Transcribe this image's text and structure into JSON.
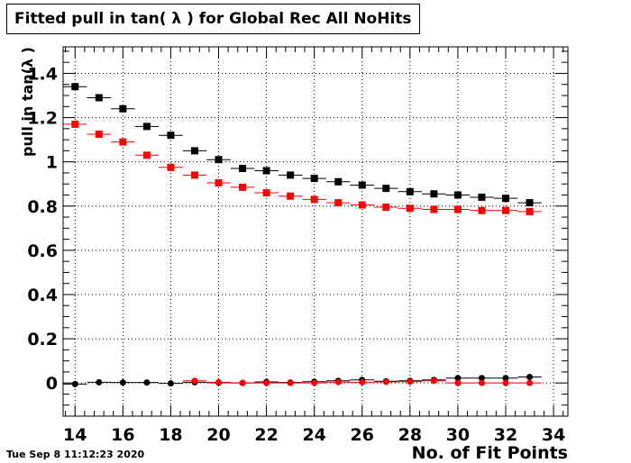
{
  "title": "Fitted pull in tan( λ ) for Global Rec All NoHits",
  "timestamp": "Tue Sep  8 11:12:23 2020",
  "chart_data": {
    "type": "scatter",
    "xlabel": "No. of Fit Points",
    "ylabel": "pull in tan(λ )",
    "xlim": [
      13.5,
      34.6
    ],
    "ylim": [
      -0.15,
      1.52
    ],
    "x_ticks": [
      14,
      16,
      18,
      20,
      22,
      24,
      26,
      28,
      30,
      32,
      34
    ],
    "y_ticks": [
      0,
      0.2,
      0.4,
      0.6,
      0.8,
      1,
      1.2,
      1.4
    ],
    "grid": true,
    "legend": "none",
    "series": [
      {
        "color": "#000000",
        "marker": "square",
        "x": [
          14,
          15,
          16,
          17,
          18,
          19,
          20,
          21,
          22,
          23,
          24,
          25,
          26,
          27,
          28,
          29,
          30,
          31,
          32,
          33
        ],
        "values": [
          1.34,
          1.29,
          1.24,
          1.16,
          1.12,
          1.05,
          1.01,
          0.97,
          0.96,
          0.94,
          0.925,
          0.91,
          0.895,
          0.88,
          0.865,
          0.855,
          0.85,
          0.84,
          0.835,
          0.815
        ]
      },
      {
        "color": "#ff0000",
        "marker": "square",
        "x": [
          14,
          15,
          16,
          17,
          18,
          19,
          20,
          21,
          22,
          23,
          24,
          25,
          26,
          27,
          28,
          29,
          30,
          31,
          32,
          33
        ],
        "values": [
          1.17,
          1.125,
          1.09,
          1.03,
          0.975,
          0.94,
          0.905,
          0.885,
          0.86,
          0.845,
          0.83,
          0.815,
          0.805,
          0.795,
          0.79,
          0.785,
          0.785,
          0.78,
          0.78,
          0.775
        ]
      },
      {
        "color": "#000000",
        "marker": "circle",
        "x": [
          14,
          15,
          16,
          17,
          18,
          19,
          20,
          21,
          22,
          23,
          24,
          25,
          26,
          27,
          28,
          29,
          30,
          31,
          32,
          33
        ],
        "values": [
          -0.005,
          0.003,
          0.002,
          0.002,
          -0.002,
          0.003,
          0.001,
          0.0,
          0.005,
          0.002,
          0.006,
          0.01,
          0.014,
          0.008,
          0.01,
          0.014,
          0.022,
          0.022,
          0.022,
          0.027
        ]
      },
      {
        "color": "#ff0000",
        "marker": "circle",
        "x": [
          19,
          20,
          21,
          22,
          23,
          24,
          25,
          26,
          27,
          28,
          29,
          30,
          31,
          32,
          33
        ],
        "values": [
          0.01,
          0.003,
          0.0,
          0.0,
          0.0,
          0.0,
          0.004,
          0.003,
          0.005,
          0.006,
          0.01,
          0.0,
          0.0,
          0.0,
          0.0
        ]
      }
    ]
  }
}
